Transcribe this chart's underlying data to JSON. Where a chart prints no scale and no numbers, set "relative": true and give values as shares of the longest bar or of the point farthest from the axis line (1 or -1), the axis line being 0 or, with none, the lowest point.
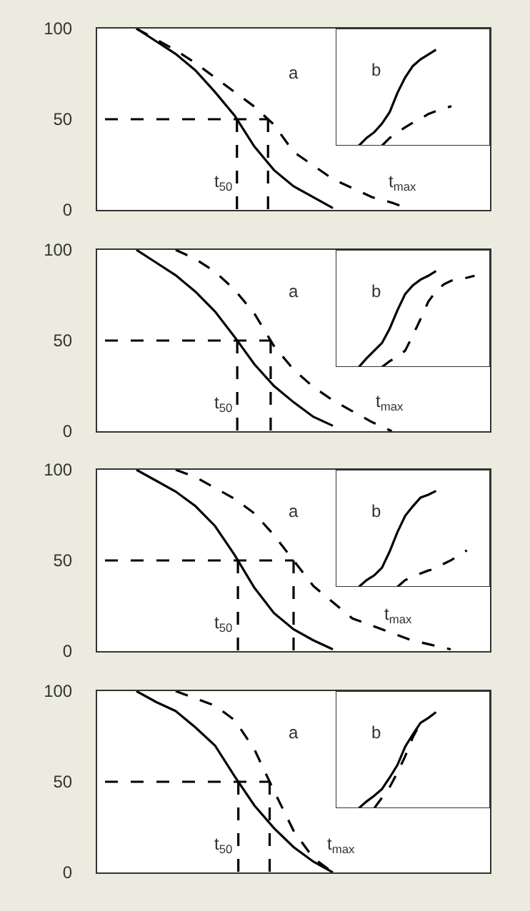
{
  "chart_data": [
    {
      "type": "line",
      "categories": [
        null,
        null,
        null,
        null,
        null,
        null,
        null,
        null,
        null,
        null,
        null,
        null,
        null,
        null,
        null,
        null,
        null,
        null,
        null,
        null,
        null
      ],
      "ylim": [
        0,
        100
      ],
      "yticks": [
        0,
        50,
        100
      ],
      "tick_labels": "y",
      "ref_lines": [
        {
          "axis": "y",
          "value": 50,
          "color": "#000000",
          "line_style": "dashed"
        }
      ],
      "series": [
        {
          "color": "#000000",
          "line_style": "solid",
          "values": [
            null,
            null,
            100,
            93,
            86,
            77,
            65,
            52,
            35,
            22,
            13,
            7,
            1,
            null,
            null,
            null,
            null,
            null,
            null,
            null,
            null
          ]
        },
        {
          "color": "#000000",
          "line_style": "dashed",
          "values": [
            null,
            null,
            100,
            94,
            88,
            81,
            73,
            65,
            57,
            47,
            32,
            24.5,
            17,
            12,
            7,
            4,
            0,
            null,
            null,
            null,
            null
          ]
        }
      ],
      "annotations": [
        "a",
        "t$_{50}$",
        "t$_{max}$"
      ]
    },
    {
      "type": "line",
      "relative": true,
      "categories": [
        null,
        null,
        null,
        null,
        null,
        null,
        null,
        null,
        null,
        null,
        null,
        null,
        null,
        null,
        null,
        null,
        null,
        null,
        null,
        null,
        null
      ],
      "tick_labels": false,
      "series": [
        {
          "color": "#000000",
          "line_style": "solid",
          "values": [
            null,
            null,
            null,
            0,
            0.08,
            0.14,
            0.23,
            0.35,
            0.55,
            0.71,
            0.83,
            0.9,
            0.95,
            1,
            null,
            null,
            null,
            null,
            null,
            null,
            null
          ]
        },
        {
          "color": "#000000",
          "line_style": "dashed",
          "values": [
            null,
            null,
            null,
            null,
            null,
            null,
            0,
            0.08,
            0.14,
            0.19,
            0.24,
            0.28,
            0.33,
            0.36,
            0.39,
            0.41,
            null,
            null,
            null,
            null,
            null
          ]
        }
      ],
      "annotations": [
        "b"
      ]
    },
    {
      "type": "line",
      "categories": [
        null,
        null,
        null,
        null,
        null,
        null,
        null,
        null,
        null,
        null,
        null,
        null,
        null,
        null,
        null,
        null,
        null,
        null,
        null,
        null,
        null
      ],
      "ylim": [
        0,
        100
      ],
      "yticks": [
        0,
        50,
        100
      ],
      "tick_labels": "y",
      "ref_lines": [
        {
          "axis": "y",
          "value": 50,
          "color": "#000000",
          "line_style": "dashed"
        }
      ],
      "series": [
        {
          "color": "#000000",
          "line_style": "solid",
          "values": [
            null,
            null,
            100,
            93,
            86,
            77,
            66,
            52,
            37,
            25,
            16,
            8,
            3,
            null,
            null,
            null,
            null,
            null,
            null,
            null,
            null
          ]
        },
        {
          "color": "#000000",
          "line_style": "dashed",
          "values": [
            null,
            null,
            null,
            null,
            100,
            95,
            88,
            78,
            65,
            47,
            34,
            24.5,
            17,
            11,
            5,
            0,
            null,
            null,
            null,
            null,
            null
          ]
        }
      ],
      "annotations": [
        "a",
        "t$_{50}$",
        "t$_{max}$"
      ]
    },
    {
      "type": "line",
      "relative": true,
      "categories": [
        null,
        null,
        null,
        null,
        null,
        null,
        null,
        null,
        null,
        null,
        null,
        null,
        null,
        null,
        null,
        null,
        null,
        null,
        null,
        null,
        null
      ],
      "tick_labels": false,
      "series": [
        {
          "color": "#000000",
          "line_style": "solid",
          "values": [
            null,
            null,
            null,
            0,
            0.09,
            0.17,
            0.25,
            0.4,
            0.59,
            0.76,
            0.85,
            0.91,
            0.95,
            1,
            null,
            null,
            null,
            null,
            null,
            null,
            null
          ]
        },
        {
          "color": "#000000",
          "line_style": "dashed",
          "values": [
            null,
            null,
            null,
            null,
            null,
            null,
            0,
            0.06,
            0.11,
            0.17,
            0.33,
            0.5,
            0.68,
            0.79,
            0.86,
            0.9,
            0.91,
            0.93,
            0.95,
            null,
            null
          ]
        }
      ],
      "annotations": [
        "b"
      ]
    },
    {
      "type": "line",
      "categories": [
        null,
        null,
        null,
        null,
        null,
        null,
        null,
        null,
        null,
        null,
        null,
        null,
        null,
        null,
        null,
        null,
        null,
        null,
        null,
        null,
        null
      ],
      "ylim": [
        0,
        100
      ],
      "yticks": [
        0,
        50,
        100
      ],
      "tick_labels": "y",
      "ref_lines": [
        {
          "axis": "y",
          "value": 50,
          "color": "#000000",
          "line_style": "dashed"
        }
      ],
      "series": [
        {
          "color": "#000000",
          "line_style": "solid",
          "values": [
            null,
            null,
            100,
            94,
            88,
            80,
            69,
            53,
            35,
            21,
            12,
            6,
            1,
            null,
            null,
            null,
            null,
            null,
            null,
            null,
            null
          ]
        },
        {
          "color": "#000000",
          "line_style": "dashed",
          "values": [
            null,
            null,
            null,
            null,
            100,
            96,
            90,
            84,
            76,
            64,
            50,
            36,
            27,
            18,
            14,
            10,
            6,
            3.5,
            1,
            null,
            null
          ]
        }
      ],
      "annotations": [
        "a",
        "t$_{50}$",
        "t$_{max}$"
      ]
    },
    {
      "type": "line",
      "relative": true,
      "categories": [
        null,
        null,
        null,
        null,
        null,
        null,
        null,
        null,
        null,
        null,
        null,
        null,
        null,
        null,
        null,
        null,
        null,
        null,
        null,
        null,
        null
      ],
      "tick_labels": false,
      "series": [
        {
          "color": "#000000",
          "line_style": "solid",
          "values": [
            null,
            null,
            null,
            0,
            0.07,
            0.12,
            0.2,
            0.37,
            0.57,
            0.74,
            0.84,
            0.93,
            0.96,
            1,
            null,
            null,
            null,
            null,
            null,
            null,
            null
          ]
        },
        {
          "color": "#000000",
          "line_style": "dashed",
          "values": [
            null,
            null,
            null,
            null,
            null,
            null,
            null,
            null,
            0,
            0.07,
            0.11,
            0.14,
            0.17,
            0.19,
            0.24,
            0.28,
            0.33,
            0.38,
            null,
            null,
            null
          ]
        }
      ],
      "annotations": [
        "b"
      ]
    },
    {
      "type": "line",
      "categories": [
        null,
        null,
        null,
        null,
        null,
        null,
        null,
        null,
        null,
        null,
        null,
        null,
        null,
        null,
        null,
        null,
        null,
        null,
        null,
        null,
        null
      ],
      "ylim": [
        0,
        100
      ],
      "yticks": [
        0,
        50,
        100
      ],
      "tick_labels": "y",
      "ref_lines": [
        {
          "axis": "y",
          "value": 50,
          "color": "#000000",
          "line_style": "dashed"
        }
      ],
      "series": [
        {
          "color": "#000000",
          "line_style": "solid",
          "values": [
            null,
            null,
            100,
            94,
            89,
            80,
            70,
            53,
            37,
            24.5,
            14,
            6,
            0,
            null,
            null,
            null,
            null,
            null,
            null,
            null,
            null
          ]
        },
        {
          "color": "#000000",
          "line_style": "dashed",
          "values": [
            null,
            null,
            null,
            null,
            100,
            96,
            92,
            84,
            68,
            45,
            23,
            8,
            0,
            null,
            null,
            null,
            null,
            null,
            null,
            null,
            null
          ]
        }
      ],
      "annotations": [
        "a",
        "t$_{50}$",
        "t$_{max}$"
      ]
    },
    {
      "type": "line",
      "relative": true,
      "categories": [
        null,
        null,
        null,
        null,
        null,
        null,
        null,
        null,
        null,
        null,
        null,
        null,
        null,
        null,
        null,
        null,
        null,
        null,
        null,
        null,
        null
      ],
      "tick_labels": false,
      "series": [
        {
          "color": "#000000",
          "line_style": "solid",
          "values": [
            null,
            null,
            null,
            0,
            0.07,
            0.13,
            0.2,
            0.32,
            0.45,
            0.64,
            0.77,
            0.89,
            0.94,
            1,
            null,
            null,
            null,
            null,
            null,
            null,
            null
          ]
        },
        {
          "color": "#000000",
          "line_style": "dashed",
          "values": [
            null,
            null,
            null,
            null,
            null,
            0,
            0.11,
            0.22,
            0.37,
            0.54,
            0.74,
            0.89,
            null,
            null,
            null,
            null,
            null,
            null,
            null,
            null,
            null
          ]
        }
      ],
      "annotations": [
        "b"
      ]
    }
  ]
}
